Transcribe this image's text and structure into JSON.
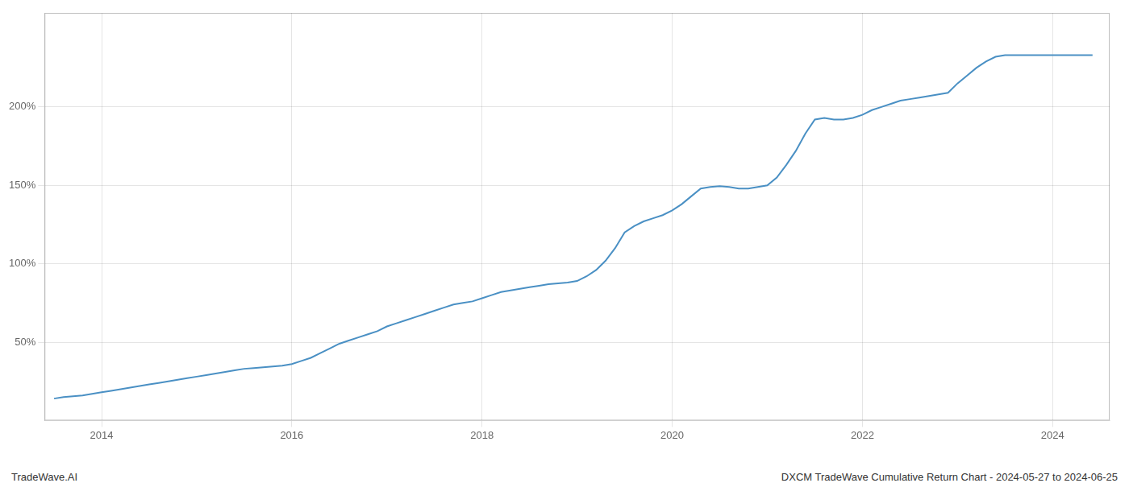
{
  "chart_data": {
    "type": "line",
    "x": [
      2013.5,
      2013.6,
      2013.7,
      2013.8,
      2013.9,
      2014.0,
      2014.1,
      2014.2,
      2014.3,
      2014.4,
      2014.5,
      2014.6,
      2014.7,
      2014.8,
      2014.9,
      2015.0,
      2015.1,
      2015.2,
      2015.3,
      2015.4,
      2015.5,
      2015.6,
      2015.7,
      2015.8,
      2015.9,
      2016.0,
      2016.1,
      2016.2,
      2016.3,
      2016.4,
      2016.5,
      2016.6,
      2016.7,
      2016.8,
      2016.9,
      2017.0,
      2017.1,
      2017.2,
      2017.3,
      2017.4,
      2017.5,
      2017.6,
      2017.7,
      2017.8,
      2017.9,
      2018.0,
      2018.1,
      2018.2,
      2018.3,
      2018.4,
      2018.5,
      2018.6,
      2018.7,
      2018.8,
      2018.9,
      2019.0,
      2019.1,
      2019.2,
      2019.3,
      2019.4,
      2019.5,
      2019.6,
      2019.7,
      2019.8,
      2019.9,
      2020.0,
      2020.1,
      2020.2,
      2020.3,
      2020.4,
      2020.5,
      2020.6,
      2020.7,
      2020.8,
      2020.9,
      2021.0,
      2021.1,
      2021.2,
      2021.3,
      2021.4,
      2021.5,
      2021.6,
      2021.7,
      2021.8,
      2021.9,
      2022.0,
      2022.1,
      2022.2,
      2022.3,
      2022.4,
      2022.5,
      2022.6,
      2022.7,
      2022.8,
      2022.9,
      2023.0,
      2023.1,
      2023.2,
      2023.3,
      2023.4,
      2023.5,
      2023.6,
      2023.7,
      2023.8,
      2023.9,
      2024.0,
      2024.1,
      2024.2,
      2024.3,
      2024.42
    ],
    "values": [
      14,
      15,
      15.5,
      16,
      17,
      18,
      19,
      20,
      21,
      22,
      23,
      24,
      25,
      26,
      27,
      28,
      29,
      30,
      31,
      32,
      33,
      33.5,
      34,
      34.5,
      35,
      36,
      38,
      40,
      43,
      46,
      49,
      51,
      53,
      55,
      57,
      60,
      62,
      64,
      66,
      68,
      70,
      72,
      74,
      75,
      76,
      78,
      80,
      82,
      83,
      84,
      85,
      86,
      87,
      87.5,
      88,
      89,
      92,
      96,
      102,
      110,
      120,
      124,
      127,
      129,
      131,
      134,
      138,
      143,
      148,
      149,
      149.5,
      149,
      148,
      148,
      149,
      150,
      155,
      163,
      172,
      183,
      192,
      193,
      192,
      192,
      193,
      195,
      198,
      200,
      202,
      204,
      205,
      206,
      207,
      208,
      209,
      215,
      220,
      225,
      229,
      232,
      233,
      233,
      233,
      233,
      233,
      233,
      233,
      233,
      233,
      233
    ],
    "color": "#4a90c4",
    "xlim": [
      2013.4,
      2024.6
    ],
    "ylim": [
      0,
      260
    ],
    "xticks": [
      2014,
      2016,
      2018,
      2020,
      2022,
      2024
    ],
    "yticks": [
      {
        "value": 50,
        "label": "50%"
      },
      {
        "value": 100,
        "label": "100%"
      },
      {
        "value": 150,
        "label": "150%"
      },
      {
        "value": 200,
        "label": "200%"
      }
    ],
    "grid": true,
    "annotations": [
      "TradeWave.AI",
      "DXCM TradeWave Cumulative Return Chart - 2024-05-27 to 2024-06-25"
    ]
  }
}
